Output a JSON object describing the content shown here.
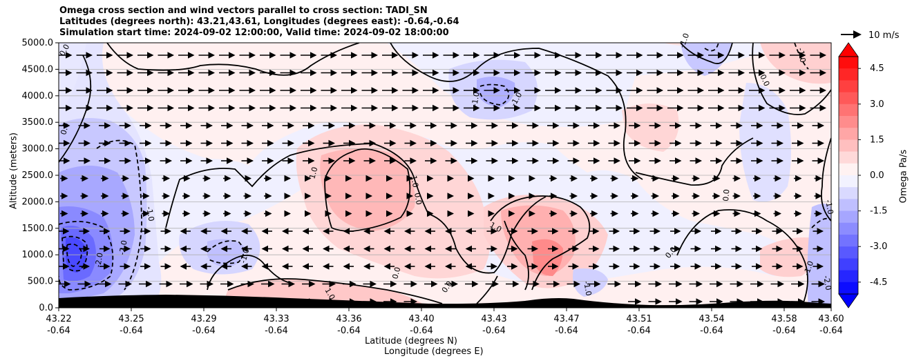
{
  "chart_data": {
    "type": "contour",
    "title_lines": [
      "Omega cross section and wind vectors parallel to cross section: TADI_SN",
      "Latitudes (degrees north): 43.21,43.61, Longitudes (degrees east): -0.64,-0.64",
      "Simulation start time: 2024-09-02 12:00:00, Valid time: 2024-09-02 18:00:00"
    ],
    "ylabel": "Altitude (meters)",
    "xlabel_lat": "Latitude (degrees N)",
    "xlabel_lon": "Longitude (degrees E)",
    "ylim": [
      0,
      5000
    ],
    "yticks": [
      "0.0",
      "500.0",
      "1000.0",
      "1500.0",
      "2000.0",
      "2500.0",
      "3000.0",
      "3500.0",
      "4000.0",
      "4500.0",
      "5000.0"
    ],
    "xticks_lat": [
      "43.22",
      "43.25",
      "43.29",
      "43.33",
      "43.36",
      "43.40",
      "43.43",
      "43.47",
      "43.51",
      "43.54",
      "43.58",
      "43.60"
    ],
    "xticks_lon": [
      "-0.64",
      "-0.64",
      "-0.64",
      "-0.64",
      "-0.64",
      "-0.64",
      "-0.64",
      "-0.64",
      "-0.64",
      "-0.64",
      "-0.64",
      "-0.64"
    ],
    "grid": "horizontal",
    "colorbar": {
      "label": "Omega Pa/s",
      "range": [
        -5,
        5
      ],
      "ticks": [
        "-4.5",
        "-3.0",
        "-1.5",
        "0.0",
        "1.5",
        "3.0",
        "4.5"
      ],
      "colormap": "bwr"
    },
    "vector_key": {
      "label": "10 m/s"
    },
    "contour_labels": [
      "0.0",
      "-1.0",
      "-2.0",
      "1.0"
    ],
    "colors": {
      "negative": "#0000ff",
      "positive": "#ff0000",
      "terrain": "#000000"
    }
  }
}
